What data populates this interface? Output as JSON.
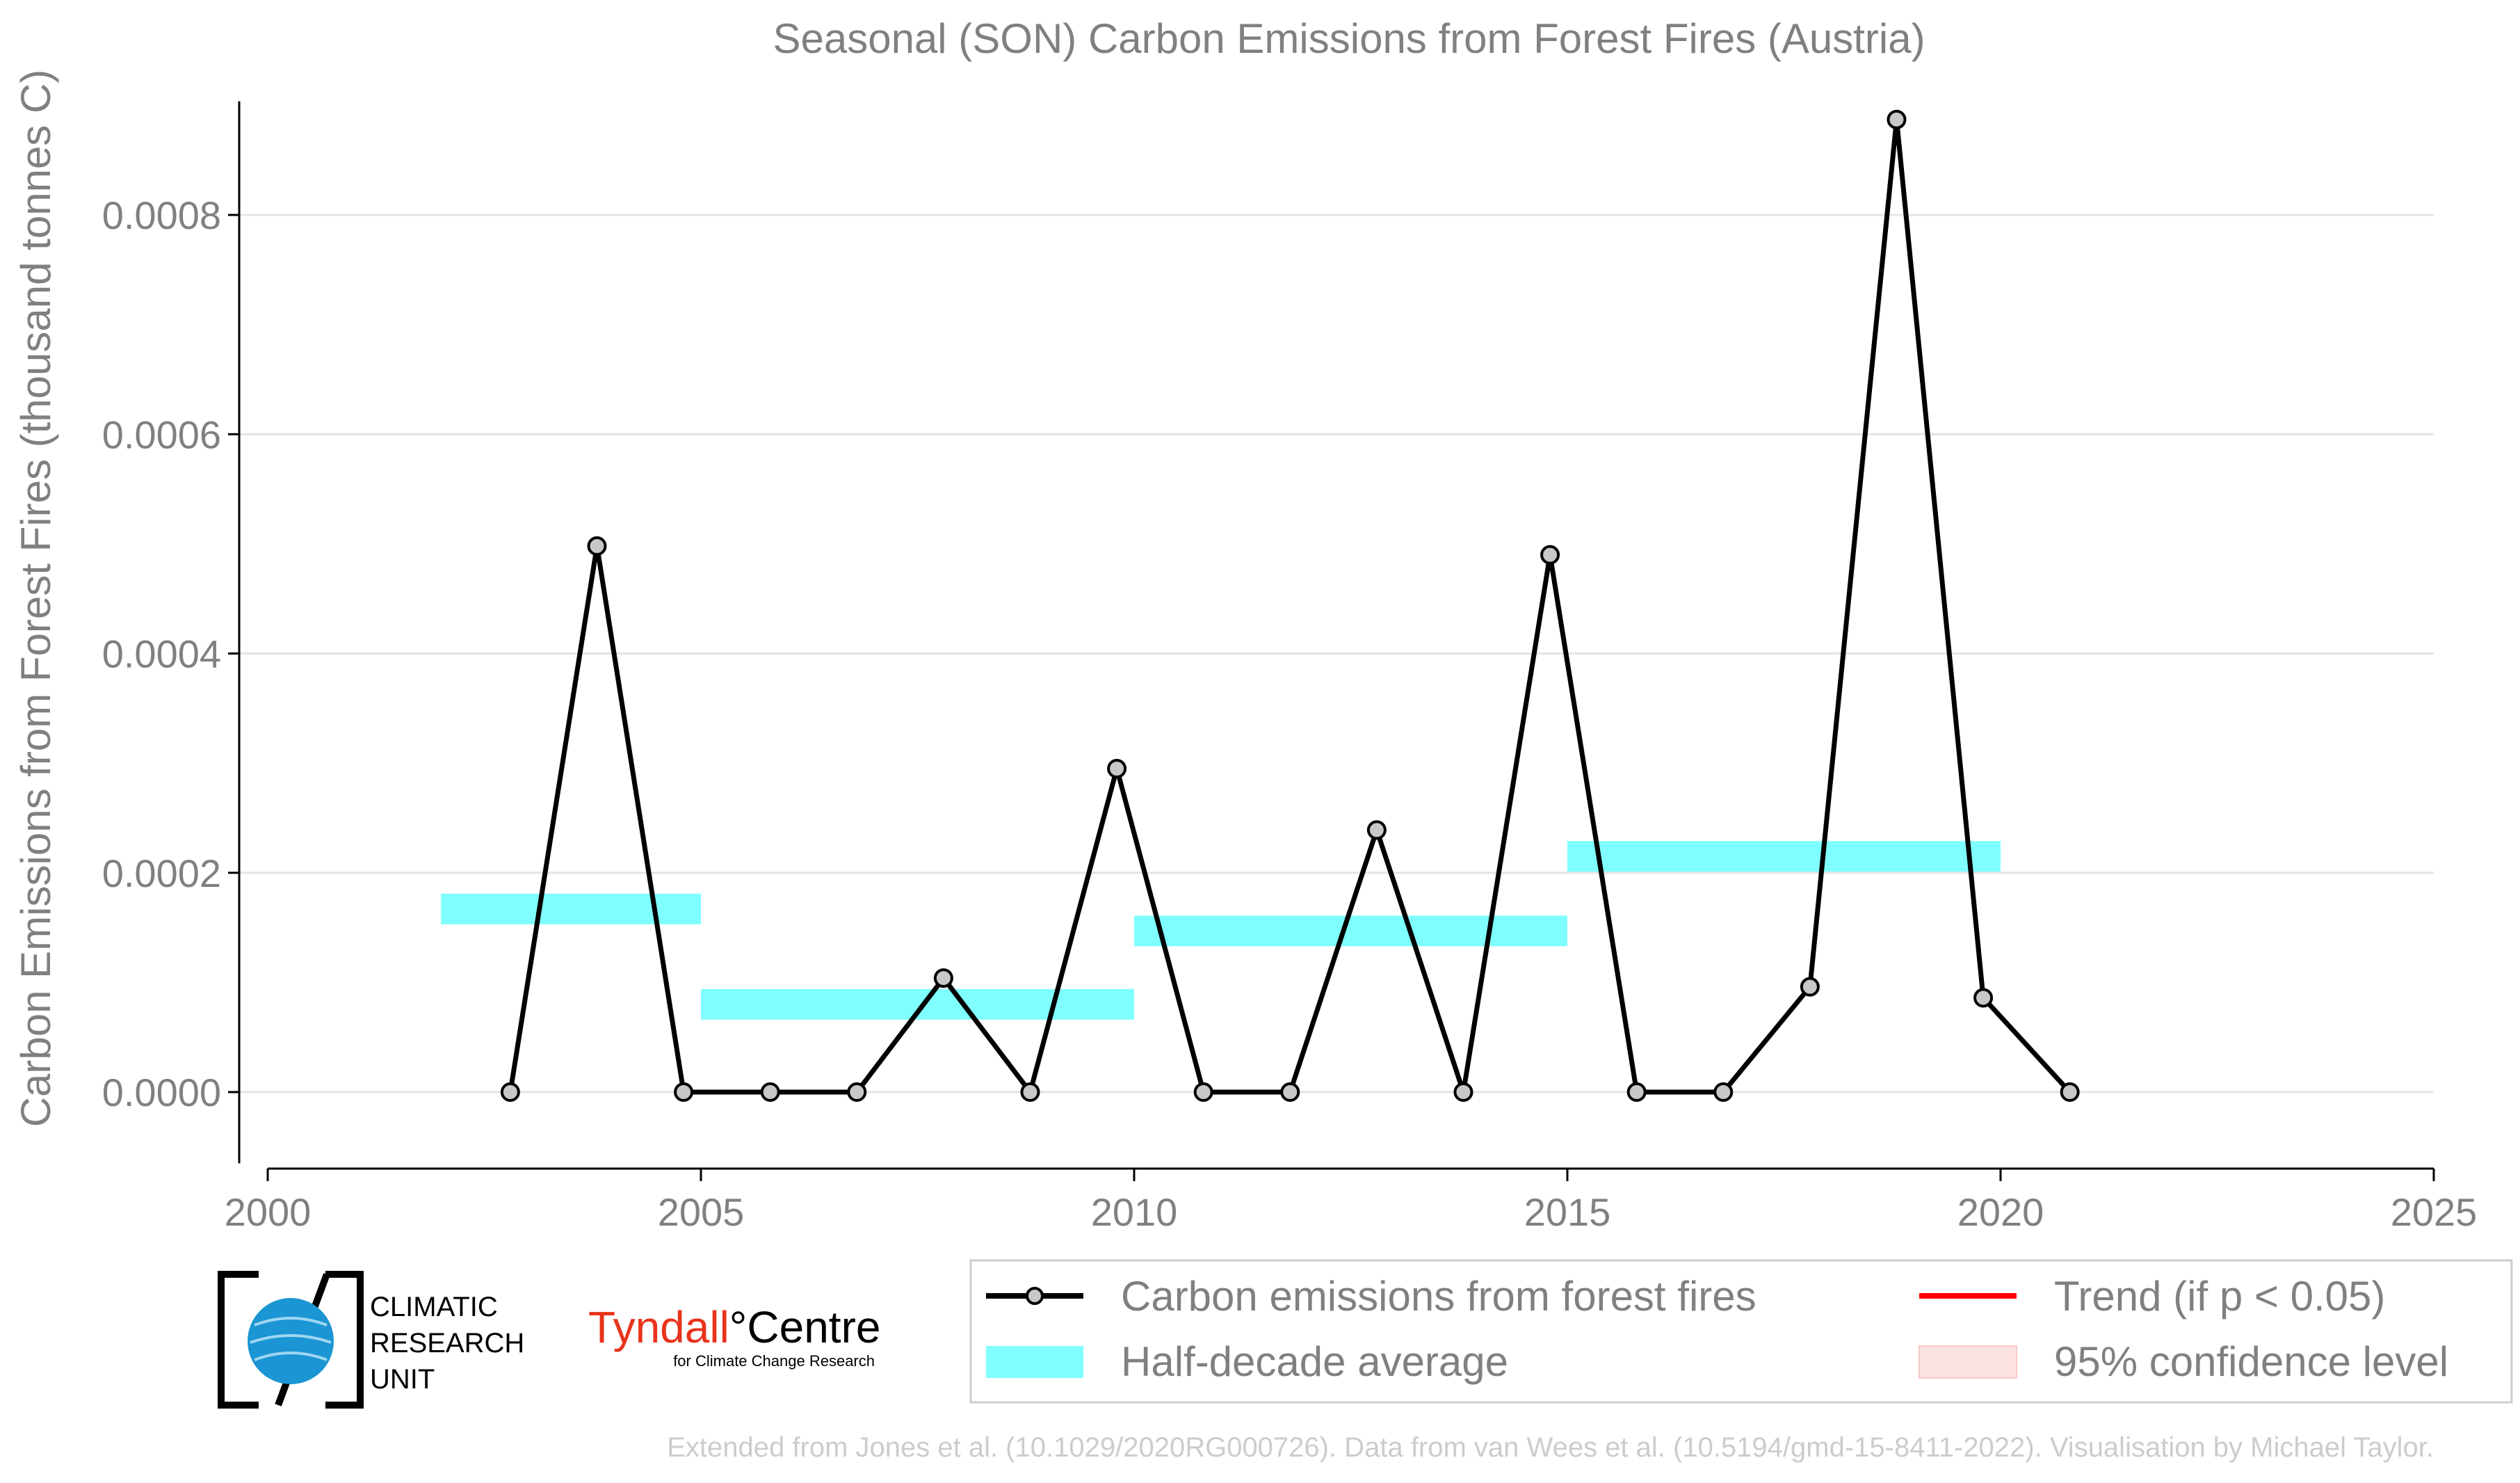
{
  "chart_data": {
    "type": "line",
    "title": "Seasonal (SON) Carbon Emissions from Forest Fires (Austria)",
    "xlabel": "",
    "ylabel": "Carbon Emissions from Forest Fires (thousand tonnes C)",
    "xlim": [
      2000,
      2025
    ],
    "ylim": [
      -7e-05,
      0.00091
    ],
    "x_ticks": [
      2000,
      2005,
      2010,
      2015,
      2020,
      2025
    ],
    "x_tick_labels": [
      "2000",
      "2005",
      "2010",
      "2015",
      "2020",
      "2025"
    ],
    "y_ticks": [
      0,
      0.0002,
      0.0004,
      0.0006,
      0.0008
    ],
    "y_tick_labels": [
      "0.0000",
      "0.0002",
      "0.0004",
      "0.0006",
      "0.0008"
    ],
    "grid": true,
    "series": [
      {
        "name": "Carbon emissions from forest fires",
        "color": "#000000",
        "x": [
          2002.8,
          2003.8,
          2004.8,
          2005.8,
          2006.8,
          2007.8,
          2008.8,
          2009.8,
          2010.8,
          2011.8,
          2012.8,
          2013.8,
          2014.8,
          2015.8,
          2016.8,
          2017.8,
          2018.8,
          2019.8,
          2020.8
        ],
        "y": [
          0,
          0.000498,
          0,
          0,
          0,
          0.000104,
          0,
          0.000295,
          0,
          0,
          0.000239,
          0,
          0.00049,
          0,
          0,
          9.6e-05,
          0.000887,
          8.6e-05,
          0
        ]
      }
    ],
    "half_decade_average": {
      "name": "Half-decade average",
      "color": "#7fffff",
      "segments": [
        {
          "x_start": 2002,
          "x_end": 2005,
          "y": 0.000167
        },
        {
          "x_start": 2005,
          "x_end": 2010,
          "y": 8e-05
        },
        {
          "x_start": 2010,
          "x_end": 2015,
          "y": 0.000147
        },
        {
          "x_start": 2015,
          "x_end": 2020,
          "y": 0.000215
        }
      ]
    },
    "legend": {
      "placement": "bottom-right",
      "entries": [
        {
          "label": "Carbon emissions from forest fires",
          "kind": "line-marker",
          "color": "#000000"
        },
        {
          "label": "Trend (if p < 0.05)",
          "kind": "line",
          "color": "#ff0000"
        },
        {
          "label": "Half-decade average",
          "kind": "band",
          "color": "#7fffff"
        },
        {
          "label": "95% confidence level",
          "kind": "band",
          "color": "#fde2e2"
        }
      ]
    }
  },
  "logos": {
    "cru_lines": [
      "CLIMATIC",
      "RESEARCH",
      "UNIT"
    ],
    "tyndall_name": "Tyndall",
    "tyndall_centre": "°Centre",
    "tyndall_sub": "for Climate Change Research"
  },
  "credit": "Extended from Jones et al. (10.1029/2020RG000726). Data from van Wees et al. (10.5194/gmd-15-8411-2022). Visualisation by Michael Taylor."
}
